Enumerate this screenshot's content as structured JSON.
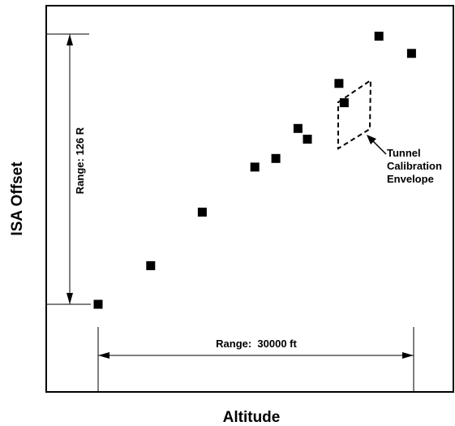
{
  "chart_data": {
    "type": "scatter",
    "title": "",
    "xlabel": "Altitude",
    "ylabel": "ISA Offset",
    "grid": false,
    "legend": "none",
    "axis_ticks": "none",
    "marker": "filled-square",
    "marker_color": "#000000",
    "points_note": "unitless relative positions: altitude span 30000 ft, ISA offset span 126 R",
    "x_range_ft": 30000,
    "y_range_R": 126,
    "series": [
      {
        "points": [
          {
            "x": 0,
            "y": 0
          },
          {
            "x": 5000,
            "y": 18
          },
          {
            "x": 9900,
            "y": 43
          },
          {
            "x": 14900,
            "y": 64
          },
          {
            "x": 16900,
            "y": 68
          },
          {
            "x": 19000,
            "y": 82
          },
          {
            "x": 19900,
            "y": 77
          },
          {
            "x": 22900,
            "y": 103
          },
          {
            "x": 23400,
            "y": 94
          },
          {
            "x": 26700,
            "y": 125
          },
          {
            "x": 29800,
            "y": 117
          }
        ]
      }
    ],
    "envelope": {
      "label_lines": [
        "Tunnel",
        "Calibration",
        "Envelope"
      ],
      "style": "dashed parallelogram"
    },
    "annotations": {
      "x_range_label": "Range:  30000 ft",
      "y_range_label": "Range:  126 R"
    }
  }
}
